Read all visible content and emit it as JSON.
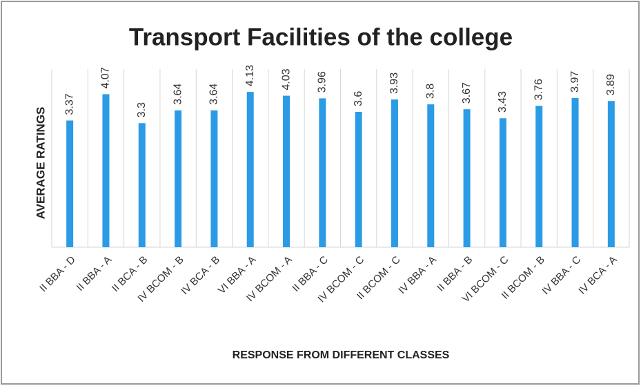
{
  "chart_data": {
    "type": "bar",
    "title": "Transport Facilities of the college",
    "y_label": "AVERAGE  RATINGS",
    "x_label": "RESPONSE FROM DIFFERENT CLASSES",
    "categories": [
      "II BBA - D",
      "II BBA - A",
      "II BCA - B",
      "IV BCOM - B",
      "IV BCA - B",
      "VI BBA - A",
      "IV BCOM - A",
      "II BBA - C",
      "IV BCOM - C",
      "II BCOM - C",
      "IV BBA - A",
      "II BBA - B",
      "VI BCOM - C",
      "II BCOM - B",
      "IV BBA - C",
      "IV BCA - A"
    ],
    "values": [
      3.37,
      4.07,
      3.3,
      3.64,
      3.64,
      4.13,
      4.03,
      3.96,
      3.6,
      3.93,
      3.8,
      3.67,
      3.43,
      3.76,
      3.97,
      3.89
    ],
    "color": "#2b9be6",
    "ylim": [
      0,
      4.5
    ]
  }
}
